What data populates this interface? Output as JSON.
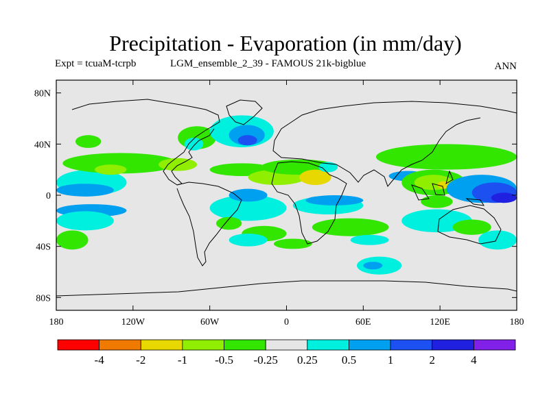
{
  "chart_data": {
    "type": "heatmap",
    "title": "Precipitation - Evaporation (in mm/day)",
    "experiment_label": "Expt = tcuaM-tcrpb",
    "run_label": "LGM_ensemble_2_39 - FAMOUS 21k-bigblue",
    "season": "ANN",
    "x_range": [
      -180,
      180
    ],
    "y_range": [
      -90,
      90
    ],
    "x_ticks": [
      {
        "value": -180,
        "label": "180"
      },
      {
        "value": -120,
        "label": "120W"
      },
      {
        "value": -60,
        "label": "60W"
      },
      {
        "value": 0,
        "label": "0"
      },
      {
        "value": 60,
        "label": "60E"
      },
      {
        "value": 120,
        "label": "120E"
      },
      {
        "value": 180,
        "label": "180"
      }
    ],
    "y_ticks": [
      {
        "value": 80,
        "label": "80N"
      },
      {
        "value": 40,
        "label": "40N"
      },
      {
        "value": 0,
        "label": "0"
      },
      {
        "value": -40,
        "label": "40S"
      },
      {
        "value": -80,
        "label": "80S"
      }
    ],
    "colorbar": {
      "colors": [
        "#ff0000",
        "#f07a00",
        "#e6d800",
        "#90ee00",
        "#32e600",
        "#e6e6e6",
        "#00f0e0",
        "#00a0f0",
        "#1c50f0",
        "#2020e0",
        "#8020e8"
      ],
      "labels": [
        "-4",
        "-2",
        "-1",
        "-0.5",
        "-0.25",
        "0.25",
        "0.5",
        "1",
        "2",
        "4"
      ]
    },
    "regions": [
      {
        "lon": -180,
        "lat": 10,
        "w": 55,
        "h": 20,
        "level": 6
      },
      {
        "lon": -180,
        "lat": 4,
        "w": 45,
        "h": 10,
        "level": 7
      },
      {
        "lon": -180,
        "lat": -12,
        "w": 55,
        "h": 10,
        "level": 7
      },
      {
        "lon": -180,
        "lat": -20,
        "w": 45,
        "h": 15,
        "level": 6
      },
      {
        "lon": -175,
        "lat": 25,
        "w": 90,
        "h": 16,
        "level": 4
      },
      {
        "lon": -150,
        "lat": 20,
        "w": 25,
        "h": 8,
        "level": 3
      },
      {
        "lon": -100,
        "lat": 24,
        "w": 30,
        "h": 10,
        "level": 3
      },
      {
        "lon": -180,
        "lat": -35,
        "w": 25,
        "h": 15,
        "level": 4
      },
      {
        "lon": -165,
        "lat": 42,
        "w": 20,
        "h": 10,
        "level": 4
      },
      {
        "lon": -85,
        "lat": 45,
        "w": 30,
        "h": 18,
        "level": 4
      },
      {
        "lon": -80,
        "lat": 40,
        "w": 15,
        "h": 10,
        "level": 6
      },
      {
        "lon": -60,
        "lat": 50,
        "w": 50,
        "h": 25,
        "level": 6
      },
      {
        "lon": -45,
        "lat": 47,
        "w": 28,
        "h": 16,
        "level": 7
      },
      {
        "lon": -38,
        "lat": 43,
        "w": 15,
        "h": 8,
        "level": 8
      },
      {
        "lon": -60,
        "lat": 20,
        "w": 50,
        "h": 10,
        "level": 4
      },
      {
        "lon": -30,
        "lat": 14,
        "w": 45,
        "h": 12,
        "level": 3
      },
      {
        "lon": -60,
        "lat": -10,
        "w": 60,
        "h": 20,
        "level": 6
      },
      {
        "lon": -45,
        "lat": 0,
        "w": 30,
        "h": 10,
        "level": 7
      },
      {
        "lon": -35,
        "lat": -30,
        "w": 35,
        "h": 12,
        "level": 4
      },
      {
        "lon": -55,
        "lat": -22,
        "w": 20,
        "h": 10,
        "level": 4
      },
      {
        "lon": -45,
        "lat": -35,
        "w": 30,
        "h": 10,
        "level": 6
      },
      {
        "lon": -20,
        "lat": 22,
        "w": 60,
        "h": 12,
        "level": 4
      },
      {
        "lon": 10,
        "lat": 14,
        "w": 25,
        "h": 12,
        "level": 2
      },
      {
        "lon": 5,
        "lat": -8,
        "w": 55,
        "h": 14,
        "level": 6
      },
      {
        "lon": 15,
        "lat": -4,
        "w": 45,
        "h": 8,
        "level": 7
      },
      {
        "lon": 20,
        "lat": -25,
        "w": 60,
        "h": 14,
        "level": 4
      },
      {
        "lon": 50,
        "lat": -35,
        "w": 30,
        "h": 8,
        "level": 6
      },
      {
        "lon": 25,
        "lat": 22,
        "w": 15,
        "h": 8,
        "level": 6
      },
      {
        "lon": 70,
        "lat": 30,
        "w": 110,
        "h": 20,
        "level": 4
      },
      {
        "lon": 80,
        "lat": 15,
        "w": 30,
        "h": 8,
        "level": 7
      },
      {
        "lon": 90,
        "lat": 10,
        "w": 50,
        "h": 20,
        "level": 4
      },
      {
        "lon": 100,
        "lat": 10,
        "w": 30,
        "h": 12,
        "level": 3
      },
      {
        "lon": 118,
        "lat": 8,
        "w": 10,
        "h": 6,
        "level": 2
      },
      {
        "lon": 125,
        "lat": 5,
        "w": 55,
        "h": 22,
        "level": 7
      },
      {
        "lon": 145,
        "lat": 2,
        "w": 35,
        "h": 16,
        "level": 8
      },
      {
        "lon": 160,
        "lat": -2,
        "w": 20,
        "h": 8,
        "level": 9
      },
      {
        "lon": 90,
        "lat": -20,
        "w": 55,
        "h": 18,
        "level": 6
      },
      {
        "lon": 105,
        "lat": -5,
        "w": 25,
        "h": 10,
        "level": 4
      },
      {
        "lon": 130,
        "lat": -25,
        "w": 30,
        "h": 12,
        "level": 4
      },
      {
        "lon": 150,
        "lat": -35,
        "w": 30,
        "h": 15,
        "level": 6
      },
      {
        "lon": 55,
        "lat": -55,
        "w": 35,
        "h": 14,
        "level": 6
      },
      {
        "lon": 60,
        "lat": -55,
        "w": 15,
        "h": 6,
        "level": 7
      },
      {
        "lon": -10,
        "lat": -38,
        "w": 30,
        "h": 8,
        "level": 4
      }
    ]
  }
}
